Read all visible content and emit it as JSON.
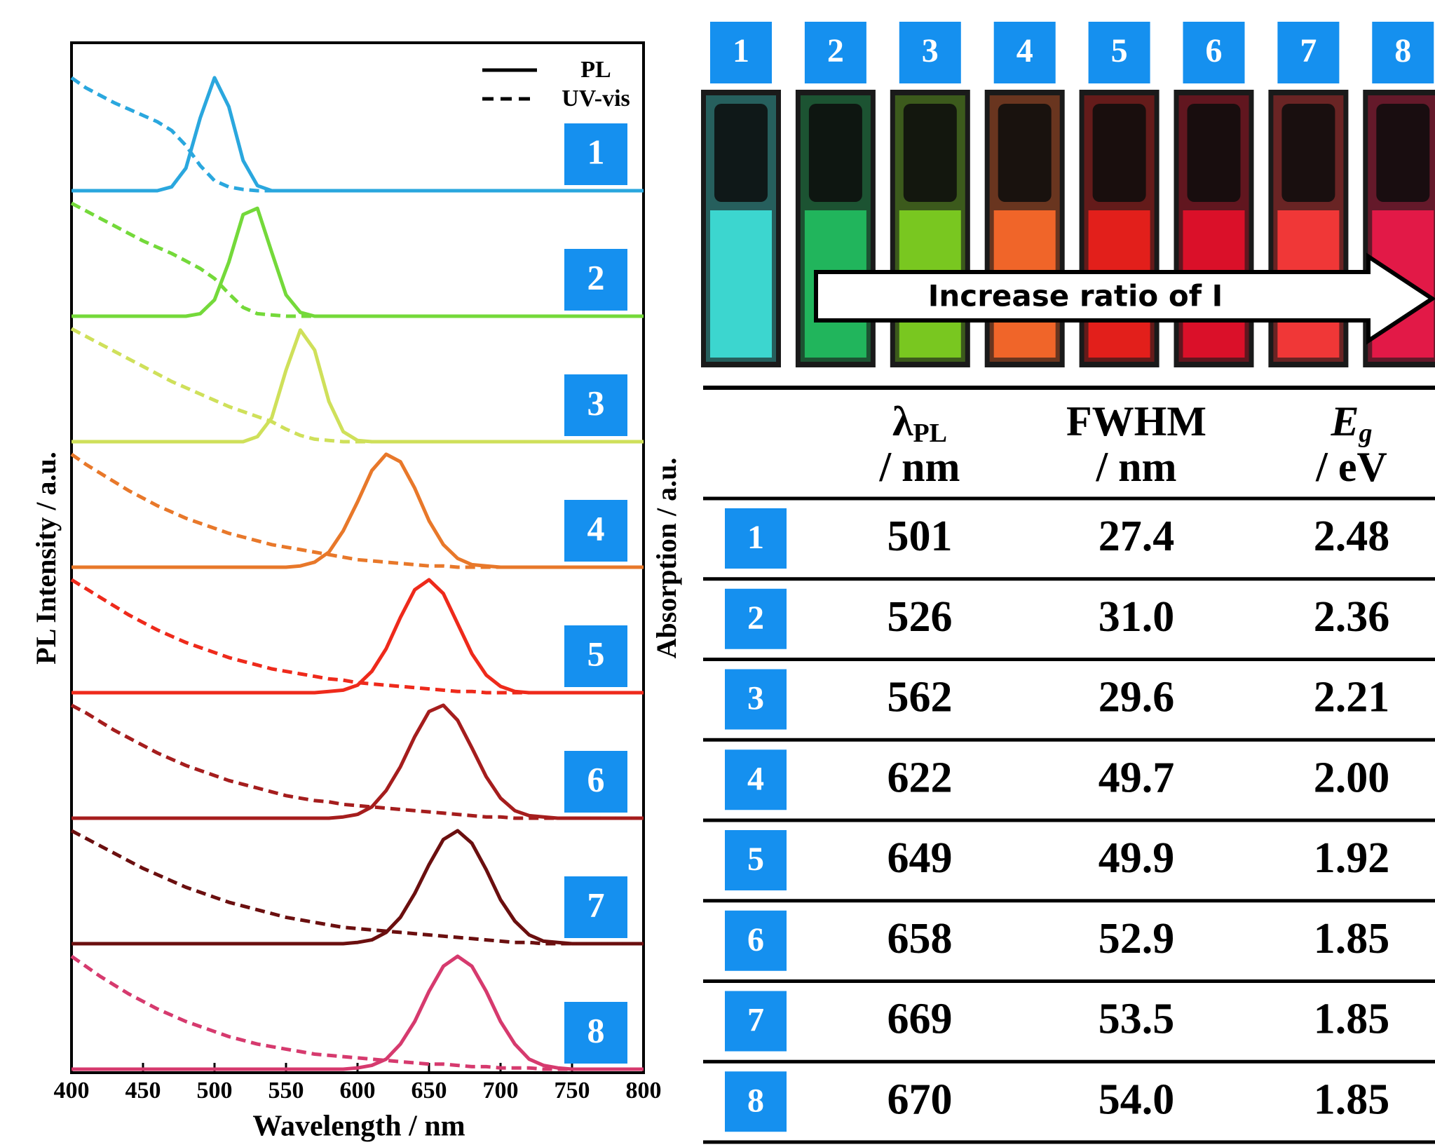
{
  "chart_data": {
    "type": "line",
    "xlabel": "Wavelength / nm",
    "ylabel": "PL Intensity / a.u.",
    "y2label": "Absorption / a.u.",
    "xlim": [
      400,
      800
    ],
    "xticks": [
      400,
      450,
      500,
      550,
      600,
      650,
      700,
      750,
      800
    ],
    "ylim": [
      0,
      1
    ],
    "legend": [
      {
        "name": "PL",
        "style": "solid"
      },
      {
        "name": "UV-vis",
        "style": "dashed"
      }
    ],
    "x": [
      400,
      410,
      420,
      430,
      440,
      450,
      460,
      470,
      480,
      490,
      500,
      510,
      520,
      530,
      540,
      550,
      560,
      570,
      580,
      590,
      600,
      610,
      620,
      630,
      640,
      650,
      660,
      670,
      680,
      690,
      700,
      710,
      720,
      730,
      740,
      750,
      760,
      770,
      780,
      790,
      800
    ],
    "panels": [
      {
        "label": "1",
        "color": "#2aa7de",
        "pl": [
          0,
          0,
          0,
          0,
          0,
          0,
          0,
          0.03,
          0.18,
          0.58,
          0.9,
          0.67,
          0.24,
          0.04,
          0,
          0,
          0,
          0,
          0,
          0,
          0,
          0,
          0,
          0,
          0,
          0,
          0,
          0,
          0,
          0,
          0,
          0,
          0,
          0,
          0,
          0,
          0,
          0,
          0,
          0,
          0
        ],
        "uvvis": [
          0.9,
          0.82,
          0.76,
          0.7,
          0.65,
          0.6,
          0.55,
          0.48,
          0.36,
          0.2,
          0.08,
          0.03,
          0.01,
          0,
          0,
          0,
          0,
          0,
          0,
          0,
          0,
          0,
          0,
          0,
          0,
          0,
          0,
          0,
          0,
          0,
          0,
          0,
          0,
          0,
          0,
          0,
          0,
          0,
          0,
          0,
          0
        ]
      },
      {
        "label": "2",
        "color": "#74d93a",
        "pl": [
          0,
          0,
          0,
          0,
          0,
          0,
          0,
          0,
          0,
          0.02,
          0.13,
          0.43,
          0.81,
          0.86,
          0.51,
          0.17,
          0.03,
          0,
          0,
          0,
          0,
          0,
          0,
          0,
          0,
          0,
          0,
          0,
          0,
          0,
          0,
          0,
          0,
          0,
          0,
          0,
          0,
          0,
          0,
          0,
          0
        ],
        "uvvis": [
          0.9,
          0.84,
          0.78,
          0.72,
          0.66,
          0.6,
          0.55,
          0.5,
          0.44,
          0.38,
          0.3,
          0.18,
          0.07,
          0.02,
          0.01,
          0,
          0,
          0,
          0,
          0,
          0,
          0,
          0,
          0,
          0,
          0,
          0,
          0,
          0,
          0,
          0,
          0,
          0,
          0,
          0,
          0,
          0,
          0,
          0,
          0,
          0
        ]
      },
      {
        "label": "3",
        "color": "#cfe05a",
        "pl": [
          0,
          0,
          0,
          0,
          0,
          0,
          0,
          0,
          0,
          0,
          0,
          0,
          0,
          0.04,
          0.19,
          0.57,
          0.89,
          0.73,
          0.32,
          0.08,
          0.01,
          0,
          0,
          0,
          0,
          0,
          0,
          0,
          0,
          0,
          0,
          0,
          0,
          0,
          0,
          0,
          0,
          0,
          0,
          0,
          0
        ],
        "uvvis": [
          0.9,
          0.84,
          0.78,
          0.72,
          0.66,
          0.6,
          0.54,
          0.48,
          0.43,
          0.38,
          0.33,
          0.28,
          0.24,
          0.2,
          0.16,
          0.1,
          0.05,
          0.02,
          0.01,
          0,
          0,
          0,
          0,
          0,
          0,
          0,
          0,
          0,
          0,
          0,
          0,
          0,
          0,
          0,
          0,
          0,
          0,
          0,
          0,
          0,
          0
        ]
      },
      {
        "label": "4",
        "color": "#e8782a",
        "pl": [
          0,
          0,
          0,
          0,
          0,
          0,
          0,
          0,
          0,
          0,
          0,
          0,
          0,
          0,
          0,
          0,
          0.01,
          0.04,
          0.12,
          0.29,
          0.52,
          0.77,
          0.9,
          0.84,
          0.63,
          0.37,
          0.18,
          0.07,
          0.02,
          0.01,
          0,
          0,
          0,
          0,
          0,
          0,
          0,
          0,
          0,
          0,
          0
        ],
        "uvvis": [
          0.9,
          0.82,
          0.75,
          0.68,
          0.61,
          0.55,
          0.49,
          0.44,
          0.39,
          0.35,
          0.31,
          0.27,
          0.24,
          0.21,
          0.18,
          0.16,
          0.14,
          0.12,
          0.1,
          0.08,
          0.06,
          0.05,
          0.04,
          0.03,
          0.02,
          0.01,
          0.01,
          0,
          0,
          0,
          0,
          0,
          0,
          0,
          0,
          0,
          0,
          0,
          0,
          0,
          0
        ]
      },
      {
        "label": "5",
        "color": "#ee2a1b",
        "pl": [
          0,
          0,
          0,
          0,
          0,
          0,
          0,
          0,
          0,
          0,
          0,
          0,
          0,
          0,
          0,
          0,
          0,
          0,
          0.01,
          0.02,
          0.06,
          0.17,
          0.35,
          0.6,
          0.82,
          0.9,
          0.79,
          0.55,
          0.31,
          0.14,
          0.05,
          0.01,
          0,
          0,
          0,
          0,
          0,
          0,
          0,
          0,
          0
        ],
        "uvvis": [
          0.9,
          0.83,
          0.76,
          0.69,
          0.62,
          0.56,
          0.5,
          0.45,
          0.4,
          0.36,
          0.32,
          0.28,
          0.25,
          0.22,
          0.19,
          0.17,
          0.15,
          0.13,
          0.11,
          0.1,
          0.08,
          0.07,
          0.06,
          0.05,
          0.04,
          0.03,
          0.02,
          0.01,
          0.01,
          0,
          0,
          0,
          0,
          0,
          0,
          0,
          0,
          0,
          0,
          0,
          0
        ]
      },
      {
        "label": "6",
        "color": "#a51d1d",
        "pl": [
          0,
          0,
          0,
          0,
          0,
          0,
          0,
          0,
          0,
          0,
          0,
          0,
          0,
          0,
          0,
          0,
          0,
          0,
          0,
          0.01,
          0.03,
          0.09,
          0.22,
          0.41,
          0.65,
          0.85,
          0.9,
          0.78,
          0.56,
          0.33,
          0.16,
          0.06,
          0.02,
          0.01,
          0,
          0,
          0,
          0,
          0,
          0,
          0
        ],
        "uvvis": [
          0.9,
          0.84,
          0.77,
          0.7,
          0.64,
          0.58,
          0.52,
          0.47,
          0.42,
          0.38,
          0.34,
          0.3,
          0.27,
          0.24,
          0.21,
          0.18,
          0.16,
          0.14,
          0.13,
          0.11,
          0.1,
          0.09,
          0.08,
          0.07,
          0.06,
          0.05,
          0.04,
          0.03,
          0.02,
          0.01,
          0.01,
          0,
          0,
          0,
          0,
          0,
          0,
          0,
          0,
          0,
          0
        ]
      },
      {
        "label": "7",
        "color": "#6b0f0f",
        "pl": [
          0,
          0,
          0,
          0,
          0,
          0,
          0,
          0,
          0,
          0,
          0,
          0,
          0,
          0,
          0,
          0,
          0,
          0,
          0,
          0,
          0.01,
          0.03,
          0.09,
          0.21,
          0.4,
          0.63,
          0.83,
          0.9,
          0.8,
          0.59,
          0.35,
          0.18,
          0.07,
          0.02,
          0.01,
          0,
          0,
          0,
          0,
          0,
          0
        ],
        "uvvis": [
          0.9,
          0.84,
          0.78,
          0.72,
          0.66,
          0.6,
          0.55,
          0.5,
          0.45,
          0.41,
          0.37,
          0.33,
          0.3,
          0.27,
          0.24,
          0.21,
          0.19,
          0.17,
          0.15,
          0.13,
          0.12,
          0.11,
          0.1,
          0.09,
          0.08,
          0.07,
          0.06,
          0.05,
          0.04,
          0.03,
          0.02,
          0.01,
          0.01,
          0,
          0,
          0,
          0,
          0,
          0,
          0,
          0
        ]
      },
      {
        "label": "8",
        "color": "#d63a6e",
        "pl": [
          0,
          0,
          0,
          0,
          0,
          0,
          0,
          0,
          0,
          0,
          0,
          0,
          0,
          0,
          0,
          0,
          0,
          0,
          0,
          0,
          0.01,
          0.03,
          0.08,
          0.2,
          0.38,
          0.62,
          0.82,
          0.9,
          0.82,
          0.62,
          0.38,
          0.2,
          0.08,
          0.03,
          0.01,
          0,
          0,
          0,
          0,
          0,
          0
        ],
        "uvvis": [
          0.9,
          0.82,
          0.74,
          0.67,
          0.6,
          0.54,
          0.48,
          0.43,
          0.38,
          0.34,
          0.3,
          0.26,
          0.23,
          0.2,
          0.18,
          0.16,
          0.14,
          0.12,
          0.11,
          0.1,
          0.09,
          0.08,
          0.07,
          0.06,
          0.05,
          0.04,
          0.04,
          0.03,
          0.02,
          0.02,
          0.01,
          0.01,
          0.01,
          0,
          0,
          0,
          0,
          0,
          0,
          0,
          0
        ]
      }
    ]
  },
  "photos": {
    "labels": [
      "1",
      "2",
      "3",
      "4",
      "5",
      "6",
      "7",
      "8"
    ],
    "colors": [
      "#3fe3dc",
      "#22c060",
      "#7fd321",
      "#ff6a2a",
      "#f0201c",
      "#e8102a",
      "#ff3a3a",
      "#f01a4a"
    ],
    "arrow_text": "Increase ratio of I"
  },
  "table": {
    "header": [
      {
        "symbol": "λ",
        "sub": "PL",
        "unit": "/ nm"
      },
      {
        "symbol": "FWHM",
        "unit": "/ nm"
      },
      {
        "symbol": "E",
        "sub": "g",
        "unit": "/ eV"
      }
    ],
    "rows": [
      [
        "1",
        "501",
        "27.4",
        "2.48"
      ],
      [
        "2",
        "526",
        "31.0",
        "2.36"
      ],
      [
        "3",
        "562",
        "29.6",
        "2.21"
      ],
      [
        "4",
        "622",
        "49.7",
        "2.00"
      ],
      [
        "5",
        "649",
        "49.9",
        "1.92"
      ],
      [
        "6",
        "658",
        "52.9",
        "1.85"
      ],
      [
        "7",
        "669",
        "53.5",
        "1.85"
      ],
      [
        "8",
        "670",
        "54.0",
        "1.85"
      ]
    ]
  }
}
